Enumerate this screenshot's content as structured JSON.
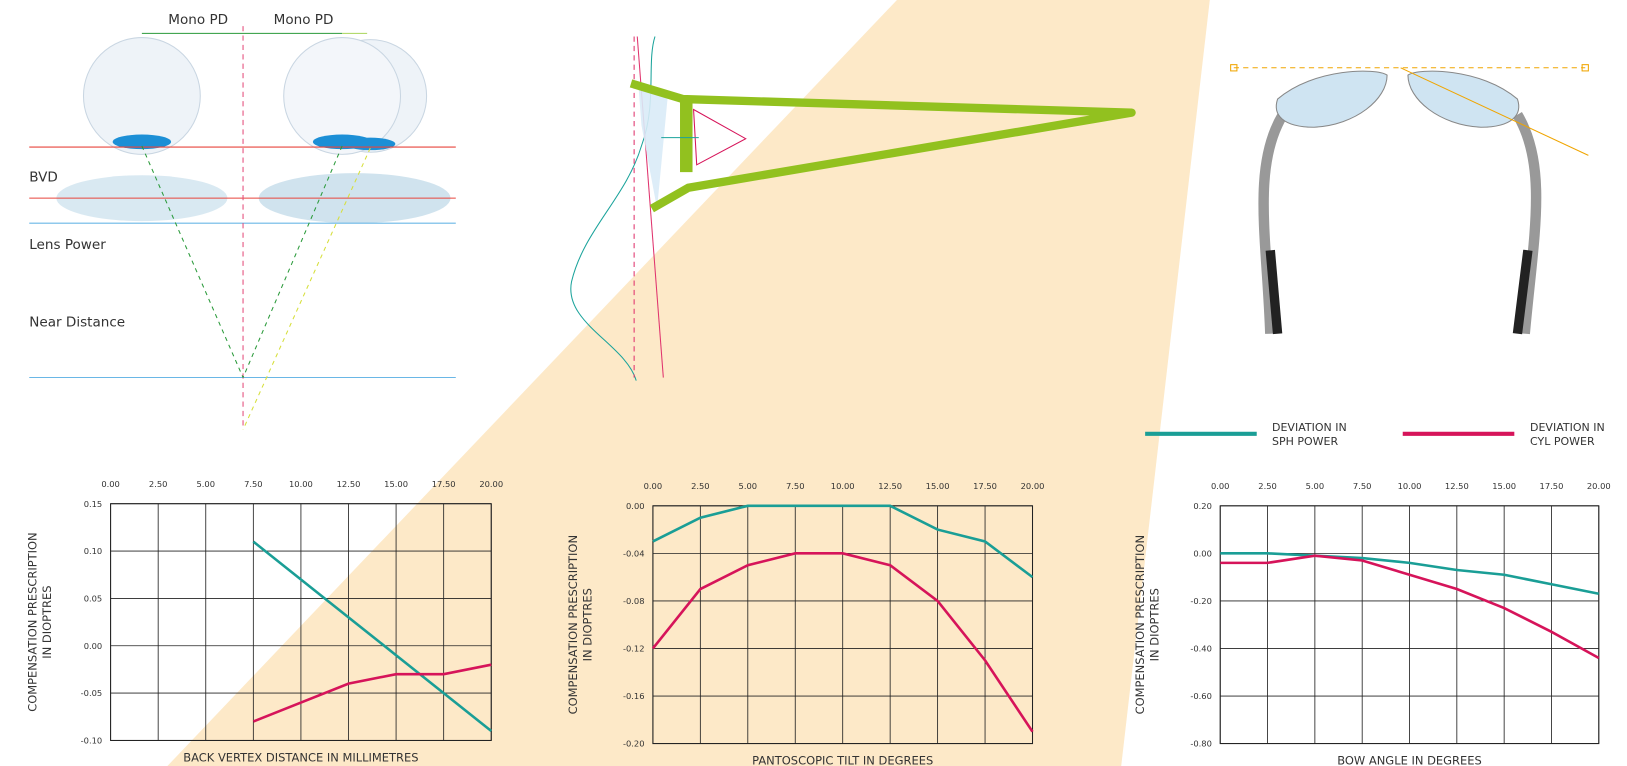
{
  "diagram": {
    "labels": [
      "Mono PD",
      "Mono PD",
      "BVD",
      "Lens Power",
      "Near Distance"
    ]
  },
  "chart_data": [
    {
      "type": "line",
      "xlabel": "BACK VERTEX DISTANCE IN MILLIMETRES",
      "ylabel": [
        "COMPENSATION PRESCRIPTION",
        "IN DIOPTRES"
      ],
      "x": [
        7.5,
        10,
        12.5,
        15,
        17.5,
        20
      ],
      "series": [
        {
          "color": "#1a9e96",
          "values": [
            0.11,
            0.07,
            0.03,
            -0.01,
            -0.05,
            -0.09
          ]
        },
        {
          "color": "#d6145a",
          "values": [
            -0.08,
            -0.06,
            -0.04,
            -0.03,
            -0.03,
            -0.02
          ]
        }
      ],
      "xlim": [
        0,
        20
      ],
      "ylim": [
        -0.1,
        0.15
      ],
      "xticks": [
        {
          "value": 0,
          "label": "0.00"
        },
        {
          "value": 2.5,
          "label": "2.50"
        },
        {
          "value": 5,
          "label": "5.00"
        },
        {
          "value": 7.5,
          "label": "7.50"
        },
        {
          "value": 10,
          "label": "10.00"
        },
        {
          "value": 12.5,
          "label": "12.50"
        },
        {
          "value": 15,
          "label": "15.00"
        },
        {
          "value": 17.5,
          "label": "17.50"
        },
        {
          "value": 20,
          "label": "20.00"
        }
      ],
      "yticks": [
        0.15,
        {
          "value": 0.1,
          "label": "0.10"
        },
        0.05,
        {
          "value": 0,
          "label": "0.00"
        },
        -0.05,
        {
          "value": -0.1,
          "label": "-0.10"
        }
      ],
      "grid": true
    },
    {
      "type": "line",
      "xlabel": "PANTOSCOPIC TILT IN DEGREES",
      "ylabel": [
        "COMPENSATION PRESCRIPTION",
        "IN DIOPTRES"
      ],
      "x": [
        0,
        2.5,
        5,
        7.5,
        10,
        12.5,
        15,
        17.5,
        20
      ],
      "series": [
        {
          "color": "#1a9e96",
          "values": [
            -0.03,
            -0.01,
            0,
            0,
            0,
            0,
            -0.02,
            -0.03,
            -0.06
          ]
        },
        {
          "color": "#d6145a",
          "values": [
            -0.12,
            -0.07,
            -0.05,
            -0.04,
            -0.04,
            -0.05,
            -0.08,
            -0.13,
            -0.19
          ]
        }
      ],
      "xlim": [
        0,
        20
      ],
      "ylim": [
        -0.2,
        0
      ],
      "xticks": [
        {
          "value": 0,
          "label": "0.00"
        },
        {
          "value": 2.5,
          "label": "2.50"
        },
        {
          "value": 5,
          "label": "5.00"
        },
        {
          "value": 7.5,
          "label": "7.50"
        },
        {
          "value": 10,
          "label": "10.00"
        },
        {
          "value": 12.5,
          "label": "12.50"
        },
        {
          "value": 15,
          "label": "15.00"
        },
        {
          "value": 17.5,
          "label": "17.50"
        },
        {
          "value": 20,
          "label": "20.00"
        }
      ],
      "yticks": [
        {
          "value": 0,
          "label": "0.00"
        },
        -0.04,
        -0.08,
        -0.12,
        -0.16,
        {
          "value": -0.2,
          "label": "-0.20"
        }
      ],
      "grid": true
    },
    {
      "type": "line",
      "xlabel": "BOW ANGLE IN DEGREES",
      "ylabel": [
        "COMPENSATION PRESCRIPTION",
        "IN DIOPTRES"
      ],
      "x": [
        0,
        2.5,
        5,
        7.5,
        10,
        12.5,
        15,
        17.5,
        20
      ],
      "series": [
        {
          "name": "DEVIATION IN SPH POWER",
          "color": "#1a9e96",
          "values": [
            0,
            0,
            -0.01,
            -0.02,
            -0.04,
            -0.07,
            -0.09,
            -0.13,
            -0.17
          ]
        },
        {
          "name": "DEVIATION IN CYL POWER",
          "color": "#d6145a",
          "values": [
            -0.04,
            -0.04,
            -0.01,
            -0.03,
            -0.09,
            -0.15,
            -0.23,
            -0.33,
            -0.44
          ]
        }
      ],
      "xlim": [
        0,
        20
      ],
      "ylim": [
        -0.8,
        0.2
      ],
      "xticks": [
        {
          "value": 0,
          "label": "0.00"
        },
        {
          "value": 2.5,
          "label": "2.50"
        },
        {
          "value": 5,
          "label": "5.00"
        },
        {
          "value": 7.5,
          "label": "7.50"
        },
        {
          "value": 10,
          "label": "10.00"
        },
        {
          "value": 12.5,
          "label": "12.50"
        },
        {
          "value": 15,
          "label": "15.00"
        },
        {
          "value": 17.5,
          "label": "17.50"
        },
        {
          "value": 20,
          "label": "20.00"
        }
      ],
      "yticks": [
        {
          "value": 0.2,
          "label": "0.20"
        },
        {
          "value": 0,
          "label": "0.00"
        },
        {
          "value": -0.2,
          "label": "-0.20"
        },
        {
          "value": -0.4,
          "label": "-0.40"
        },
        {
          "value": -0.6,
          "label": "-0.60"
        },
        {
          "value": -0.8,
          "label": "-0.80"
        }
      ],
      "grid": true,
      "legend": "top"
    }
  ]
}
